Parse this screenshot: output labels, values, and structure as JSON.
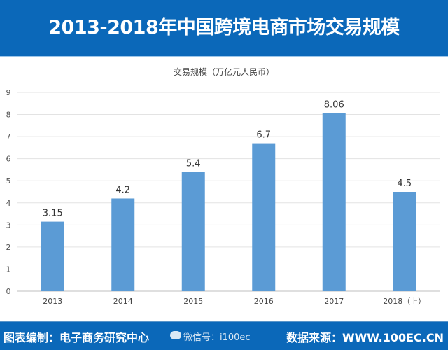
{
  "header": {
    "title": "2013-2018年中国跨境电商市场交易规模"
  },
  "footer": {
    "credit": "图表编制：电子商务研究中心",
    "source": "数据来源：WWW.100EC.CN",
    "watermark": "微信号：i100ec"
  },
  "colors": {
    "bar": "#5b9bd5",
    "header": "#0b68b9"
  },
  "chart_data": {
    "type": "bar",
    "title": "交易规模（万亿元人民币）",
    "categories": [
      "2013",
      "2014",
      "2015",
      "2016",
      "2017",
      "2018（上）"
    ],
    "values": [
      3.15,
      4.2,
      5.4,
      6.7,
      8.06,
      4.5
    ],
    "value_labels": [
      "3.15",
      "4.2",
      "5.4",
      "6.7",
      "8.06",
      "4.5"
    ],
    "yticks": [
      "0",
      "1",
      "2",
      "3",
      "4",
      "5",
      "6",
      "7",
      "8",
      "9"
    ],
    "ylim": [
      0,
      9
    ],
    "xlabel": "",
    "ylabel": "",
    "grid": true
  }
}
